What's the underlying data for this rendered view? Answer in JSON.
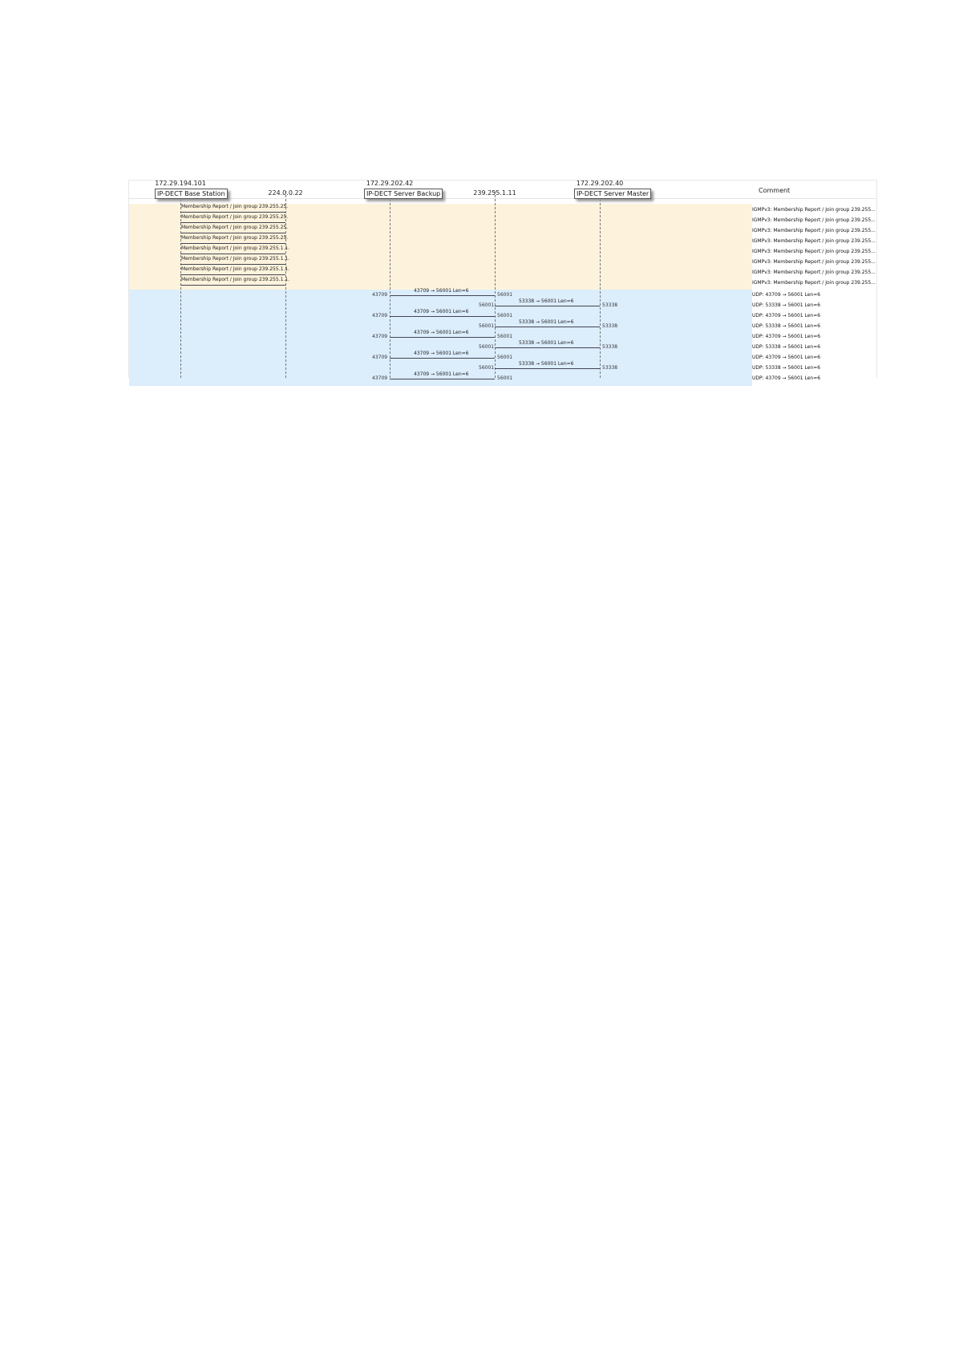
{
  "header": {
    "nodes": [
      {
        "ip": "172.29.194.101",
        "name": "IP-DECT Base Station"
      },
      {
        "ip": "224.0.0.22",
        "name": ""
      },
      {
        "ip": "172.29.202.42",
        "name": "IP-DECT Server Backup"
      },
      {
        "ip": "239.255.1.11",
        "name": ""
      },
      {
        "ip": "172.29.202.40",
        "name": "IP-DECT Server Master"
      }
    ],
    "comment_label": "Comment"
  },
  "colors": {
    "igmp_band": "#fdf3dc",
    "udp_band": "#dcedfc"
  },
  "igmp_rows": [
    {
      "label": "Membership Report / Join group 239.255.25.",
      "comment": "IGMPv3: Membership Report / Join group 239.255..."
    },
    {
      "label": "Membership Report / Join group 239.255.25.",
      "comment": "IGMPv3: Membership Report / Join group 239.255..."
    },
    {
      "label": "Membership Report / Join group 239.255.25.",
      "comment": "IGMPv3: Membership Report / Join group 239.255..."
    },
    {
      "label": "Membership Report / Join group 239.255.25.",
      "comment": "IGMPv3: Membership Report / Join group 239.255..."
    },
    {
      "label": "Membership Report / Join group 239.255.1.1.",
      "comment": "IGMPv3: Membership Report / Join group 239.255..."
    },
    {
      "label": "Membership Report / Join group 239.255.1.1.",
      "comment": "IGMPv3: Membership Report / Join group 239.255..."
    },
    {
      "label": "Membership Report / Join group 239.255.1.1.",
      "comment": "IGMPv3: Membership Report / Join group 239.255..."
    },
    {
      "label": "Membership Report / Join group 239.255.1.1.",
      "comment": "IGMPv3: Membership Report / Join group 239.255..."
    }
  ],
  "udp_rows": [
    {
      "dir": "right",
      "src_port": "43709",
      "dst_port": "56001",
      "label": "43709 → 56001 Len=6",
      "comment": "UDP: 43709 → 56001 Len=6"
    },
    {
      "dir": "left",
      "src_port": "53338",
      "dst_port": "56001",
      "label": "53338 → 56001 Len=6",
      "comment": "UDP: 53338 → 56001 Len=6"
    },
    {
      "dir": "right",
      "src_port": "43709",
      "dst_port": "56001",
      "label": "43709 → 56001 Len=6",
      "comment": "UDP: 43709 → 56001 Len=6"
    },
    {
      "dir": "left",
      "src_port": "53338",
      "dst_port": "56001",
      "label": "53338 → 56001 Len=6",
      "comment": "UDP: 53338 → 56001 Len=6"
    },
    {
      "dir": "right",
      "src_port": "43709",
      "dst_port": "56001",
      "label": "43709 → 56001 Len=6",
      "comment": "UDP: 43709 → 56001 Len=6"
    },
    {
      "dir": "left",
      "src_port": "53338",
      "dst_port": "56001",
      "label": "53338 → 56001 Len=6",
      "comment": "UDP: 53338 → 56001 Len=6"
    },
    {
      "dir": "right",
      "src_port": "43709",
      "dst_port": "56001",
      "label": "43709 → 56001 Len=6",
      "comment": "UDP: 43709 → 56001 Len=6"
    },
    {
      "dir": "left",
      "src_port": "53338",
      "dst_port": "56001",
      "label": "53338 → 56001 Len=6",
      "comment": "UDP: 53338 → 56001 Len=6"
    },
    {
      "dir": "right",
      "src_port": "43709",
      "dst_port": "56001",
      "label": "43709 → 56001 Len=6",
      "comment": "UDP: 43709 → 56001 Len=6"
    }
  ]
}
